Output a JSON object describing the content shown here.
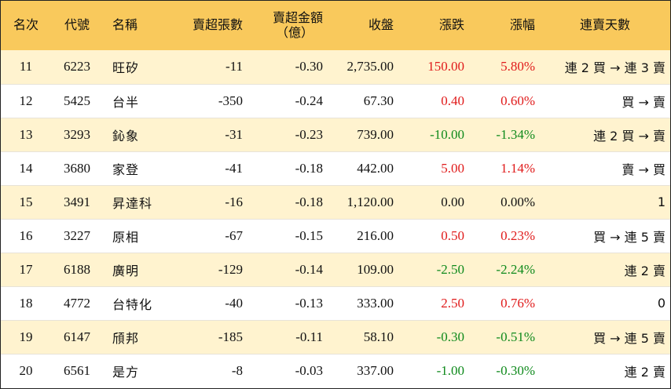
{
  "headers": {
    "rank": "名次",
    "code": "代號",
    "name": "名稱",
    "net_sell_lots": "賣超張數",
    "net_sell_amount_line1": "賣超金額",
    "net_sell_amount_line2": "（億）",
    "close": "收盤",
    "change": "漲跌",
    "change_pct": "漲幅",
    "consecutive_days": "連賣天數"
  },
  "rows": [
    {
      "rank": "11",
      "code": "6223",
      "name": "旺矽",
      "lots": "-11",
      "amount": "-0.30",
      "close": "2,735.00",
      "change": "150.00",
      "pct": "5.80%",
      "days": "連 2 買 → 連 3 賣",
      "dir": "up"
    },
    {
      "rank": "12",
      "code": "5425",
      "name": "台半",
      "lots": "-350",
      "amount": "-0.24",
      "close": "67.30",
      "change": "0.40",
      "pct": "0.60%",
      "days": "買 → 賣",
      "dir": "up"
    },
    {
      "rank": "13",
      "code": "3293",
      "name": "鈊象",
      "lots": "-31",
      "amount": "-0.23",
      "close": "739.00",
      "change": "-10.00",
      "pct": "-1.34%",
      "days": "連 2 買 → 賣",
      "dir": "down"
    },
    {
      "rank": "14",
      "code": "3680",
      "name": "家登",
      "lots": "-41",
      "amount": "-0.18",
      "close": "442.00",
      "change": "5.00",
      "pct": "1.14%",
      "days": "賣 → 買",
      "dir": "up"
    },
    {
      "rank": "15",
      "code": "3491",
      "name": "昇達科",
      "lots": "-16",
      "amount": "-0.18",
      "close": "1,120.00",
      "change": "0.00",
      "pct": "0.00%",
      "days": "1",
      "dir": "flat"
    },
    {
      "rank": "16",
      "code": "3227",
      "name": "原相",
      "lots": "-67",
      "amount": "-0.15",
      "close": "216.00",
      "change": "0.50",
      "pct": "0.23%",
      "days": "買 → 連 5 賣",
      "dir": "up"
    },
    {
      "rank": "17",
      "code": "6188",
      "name": "廣明",
      "lots": "-129",
      "amount": "-0.14",
      "close": "109.00",
      "change": "-2.50",
      "pct": "-2.24%",
      "days": "連 2 賣",
      "dir": "down"
    },
    {
      "rank": "18",
      "code": "4772",
      "name": "台特化",
      "lots": "-40",
      "amount": "-0.13",
      "close": "333.00",
      "change": "2.50",
      "pct": "0.76%",
      "days": "0",
      "dir": "up"
    },
    {
      "rank": "19",
      "code": "6147",
      "name": "頎邦",
      "lots": "-185",
      "amount": "-0.11",
      "close": "58.10",
      "change": "-0.30",
      "pct": "-0.51%",
      "days": "買 → 連 5 賣",
      "dir": "down"
    },
    {
      "rank": "20",
      "code": "6561",
      "name": "是方",
      "lots": "-8",
      "amount": "-0.03",
      "close": "337.00",
      "change": "-1.00",
      "pct": "-0.30%",
      "days": "連 2 賣",
      "dir": "down"
    }
  ],
  "colors": {
    "header_bg": "#f9c95c",
    "odd_row_bg": "#fff3cf",
    "up": "#e01b1b",
    "down": "#0f8a1c"
  }
}
